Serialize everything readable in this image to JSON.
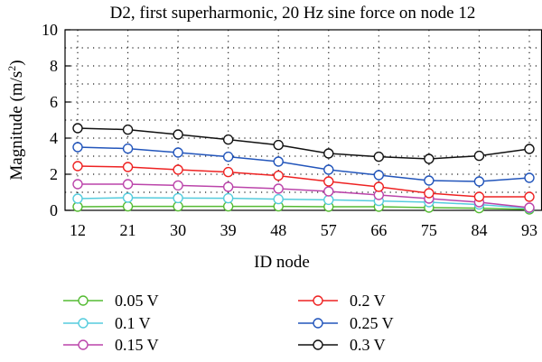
{
  "chart_data": {
    "type": "line",
    "title": "D2, first superharmonic, 20 Hz sine force on node 12",
    "xlabel": "ID node",
    "ylabel_main": "Magnitude (m/s",
    "ylabel_sup": "2",
    "ylabel_tail": ")",
    "categories": [
      "12",
      "21",
      "30",
      "39",
      "48",
      "57",
      "66",
      "75",
      "84",
      "93"
    ],
    "ylim": [
      0,
      10
    ],
    "yticks": [
      "0",
      "2",
      "4",
      "6",
      "8",
      "10"
    ],
    "grid": true,
    "legend_position": "bottom",
    "series": [
      {
        "name": "0.05 V",
        "color": "#55bb33",
        "values": [
          0.2,
          0.22,
          0.22,
          0.22,
          0.22,
          0.2,
          0.2,
          0.15,
          0.12,
          0.05
        ]
      },
      {
        "name": "0.1 V",
        "color": "#55ccdd",
        "values": [
          0.65,
          0.7,
          0.68,
          0.67,
          0.62,
          0.58,
          0.52,
          0.45,
          0.32,
          0.12
        ]
      },
      {
        "name": "0.15 V",
        "color": "#bb44aa",
        "values": [
          1.45,
          1.45,
          1.38,
          1.3,
          1.2,
          1.05,
          0.85,
          0.65,
          0.45,
          0.15
        ]
      },
      {
        "name": "0.2 V",
        "color": "#ee2222",
        "values": [
          2.45,
          2.4,
          2.25,
          2.12,
          1.92,
          1.6,
          1.3,
          0.95,
          0.75,
          0.75
        ]
      },
      {
        "name": "0.25 V",
        "color": "#2255bb",
        "values": [
          3.5,
          3.42,
          3.2,
          2.97,
          2.7,
          2.25,
          1.95,
          1.65,
          1.6,
          1.8
        ]
      },
      {
        "name": "0.3 V",
        "color": "#111111",
        "values": [
          4.55,
          4.47,
          4.2,
          3.92,
          3.62,
          3.15,
          2.97,
          2.85,
          3.02,
          3.4
        ]
      }
    ]
  }
}
